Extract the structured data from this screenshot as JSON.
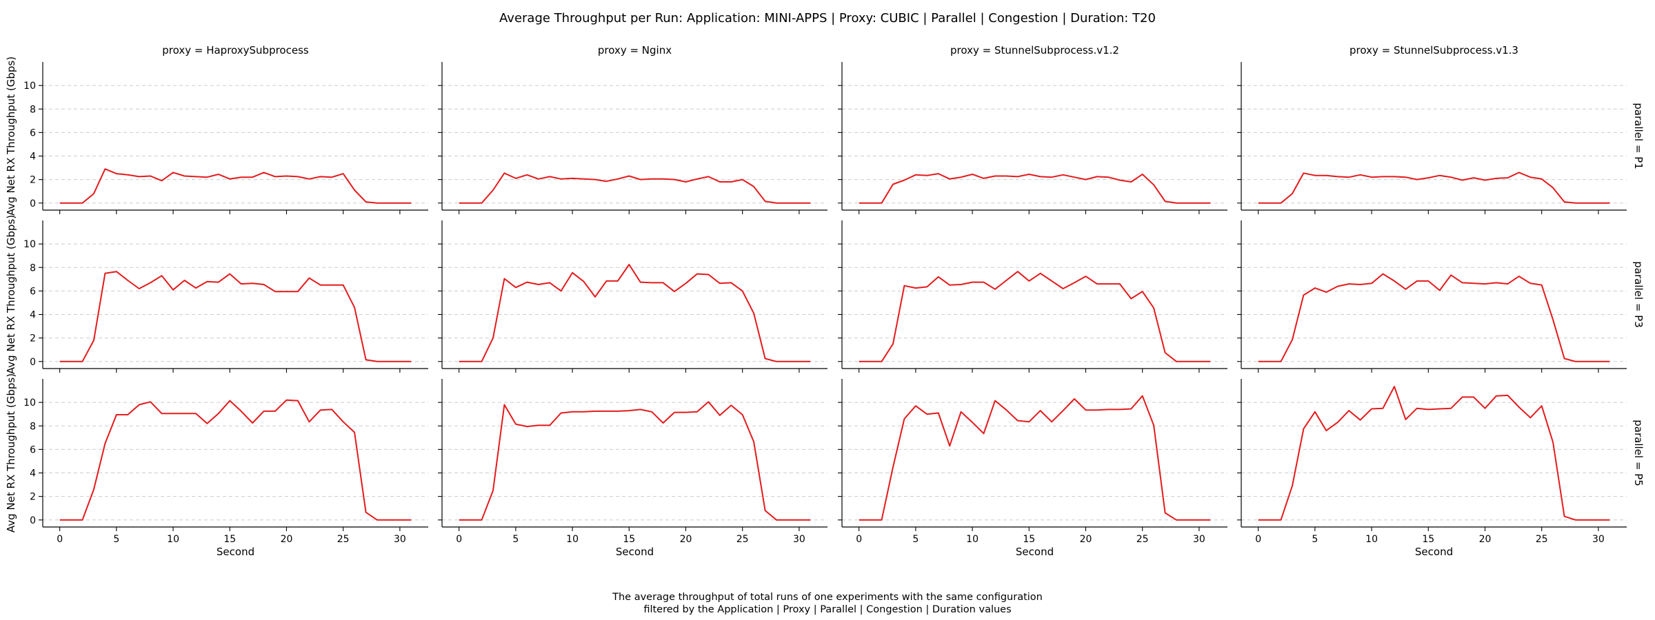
{
  "title": "Average Throughput per Run: Application: MINI-APPS | Proxy: CUBIC | Parallel | Congestion | Duration: T20",
  "caption": [
    "The average throughput of total runs of one experiments with the same configuration",
    "filtered by the Application | Proxy | Parallel | Congestion | Duration values"
  ],
  "line_color": "#e41a1c",
  "chart_data": {
    "type": "line",
    "layout": "facet-grid",
    "xlabel": "Second",
    "ylabel": "Avg Net RX Throughput (Gbps)",
    "xlim": [
      -1.5,
      32.5
    ],
    "ylim": [
      -0.6,
      12
    ],
    "xticks": [
      0,
      5,
      10,
      15,
      20,
      25,
      30
    ],
    "yticks": [
      0,
      2,
      4,
      6,
      8,
      10
    ],
    "grid": "horizontal dashed",
    "x": [
      0,
      1,
      2,
      3,
      4,
      5,
      6,
      7,
      8,
      9,
      10,
      11,
      12,
      13,
      14,
      15,
      16,
      17,
      18,
      19,
      20,
      21,
      22,
      23,
      24,
      25,
      26,
      27,
      28,
      29,
      30,
      31
    ],
    "columns": [
      "proxy = HaproxySubprocess",
      "proxy = Nginx",
      "proxy = StunnelSubprocess.v1.2",
      "proxy = StunnelSubprocess.v1.3"
    ],
    "rows": [
      "parallel = P1",
      "parallel = P3",
      "parallel = P5"
    ],
    "panels": [
      [
        [
          0,
          0,
          0,
          0.8,
          2.9,
          2.5,
          2.4,
          2.25,
          2.3,
          1.9,
          2.6,
          2.3,
          2.25,
          2.2,
          2.45,
          2.05,
          2.2,
          2.2,
          2.6,
          2.25,
          2.3,
          2.25,
          2.05,
          2.25,
          2.2,
          2.5,
          1.1,
          0.1,
          0,
          0,
          0,
          0
        ],
        [
          0,
          0,
          0,
          1.1,
          2.55,
          2.1,
          2.4,
          2.05,
          2.25,
          2.05,
          2.1,
          2.05,
          2.0,
          1.85,
          2.05,
          2.3,
          2.0,
          2.05,
          2.05,
          2.0,
          1.8,
          2.05,
          2.25,
          1.8,
          1.8,
          2.0,
          1.4,
          0.15,
          0,
          0,
          0,
          0
        ],
        [
          0,
          0,
          0,
          1.6,
          1.95,
          2.4,
          2.35,
          2.5,
          2.05,
          2.2,
          2.45,
          2.1,
          2.3,
          2.3,
          2.25,
          2.45,
          2.25,
          2.2,
          2.4,
          2.2,
          2.0,
          2.25,
          2.2,
          1.95,
          1.8,
          2.45,
          1.55,
          0.15,
          0,
          0,
          0,
          0
        ],
        [
          0,
          0,
          0,
          0.8,
          2.55,
          2.35,
          2.35,
          2.25,
          2.2,
          2.4,
          2.2,
          2.25,
          2.25,
          2.2,
          2.0,
          2.15,
          2.35,
          2.2,
          1.95,
          2.15,
          1.95,
          2.1,
          2.15,
          2.6,
          2.2,
          2.05,
          1.3,
          0.1,
          0,
          0,
          0,
          0
        ]
      ],
      [
        [
          0,
          0,
          0,
          1.8,
          7.5,
          7.65,
          6.9,
          6.2,
          6.7,
          7.3,
          6.1,
          6.9,
          6.25,
          6.8,
          6.75,
          7.45,
          6.6,
          6.65,
          6.55,
          5.95,
          5.95,
          5.95,
          7.1,
          6.5,
          6.5,
          6.5,
          4.6,
          0.15,
          0,
          0,
          0,
          0
        ],
        [
          0,
          0,
          0,
          2.0,
          7.05,
          6.3,
          6.75,
          6.55,
          6.7,
          6.0,
          7.55,
          6.8,
          5.5,
          6.85,
          6.85,
          8.25,
          6.75,
          6.7,
          6.7,
          5.95,
          6.65,
          7.45,
          7.4,
          6.65,
          6.7,
          6.0,
          4.1,
          0.25,
          0,
          0,
          0,
          0
        ],
        [
          0,
          0,
          0,
          1.5,
          6.45,
          6.25,
          6.35,
          7.2,
          6.5,
          6.55,
          6.75,
          6.75,
          6.15,
          6.9,
          7.65,
          6.85,
          7.5,
          6.85,
          6.2,
          6.7,
          7.25,
          6.6,
          6.6,
          6.6,
          5.35,
          5.95,
          4.55,
          0.75,
          0,
          0,
          0,
          0
        ],
        [
          0,
          0,
          0,
          1.85,
          5.65,
          6.25,
          5.9,
          6.4,
          6.6,
          6.55,
          6.65,
          7.45,
          6.85,
          6.15,
          6.85,
          6.85,
          6.05,
          7.35,
          6.7,
          6.65,
          6.6,
          6.7,
          6.6,
          7.25,
          6.65,
          6.5,
          3.55,
          0.25,
          0,
          0,
          0,
          0
        ]
      ],
      [
        [
          0,
          0,
          0,
          2.6,
          6.5,
          8.95,
          8.95,
          9.8,
          10.05,
          9.05,
          9.05,
          9.05,
          9.05,
          8.2,
          9.05,
          10.15,
          9.25,
          8.25,
          9.25,
          9.25,
          10.2,
          10.15,
          8.35,
          9.35,
          9.4,
          8.35,
          7.45,
          0.65,
          0,
          0,
          0,
          0
        ],
        [
          0,
          0,
          0,
          2.5,
          9.8,
          8.15,
          7.95,
          8.05,
          8.05,
          9.1,
          9.2,
          9.2,
          9.25,
          9.25,
          9.25,
          9.3,
          9.4,
          9.2,
          8.25,
          9.15,
          9.15,
          9.2,
          10.05,
          8.9,
          9.75,
          8.95,
          6.65,
          0.8,
          0,
          0,
          0,
          0
        ],
        [
          0,
          0,
          0,
          4.5,
          8.6,
          9.7,
          9.0,
          9.1,
          6.3,
          9.2,
          8.3,
          7.35,
          10.15,
          9.35,
          8.45,
          8.35,
          9.3,
          8.35,
          9.3,
          10.3,
          9.35,
          9.35,
          9.4,
          9.4,
          9.45,
          10.55,
          8.05,
          0.6,
          0,
          0,
          0,
          0
        ],
        [
          0,
          0,
          0,
          2.9,
          7.75,
          9.2,
          7.6,
          8.3,
          9.3,
          8.5,
          9.45,
          9.5,
          11.35,
          8.55,
          9.5,
          9.4,
          9.45,
          9.5,
          10.45,
          10.45,
          9.5,
          10.55,
          10.6,
          9.6,
          8.7,
          9.7,
          6.6,
          0.3,
          0,
          0,
          0,
          0
        ]
      ]
    ]
  }
}
